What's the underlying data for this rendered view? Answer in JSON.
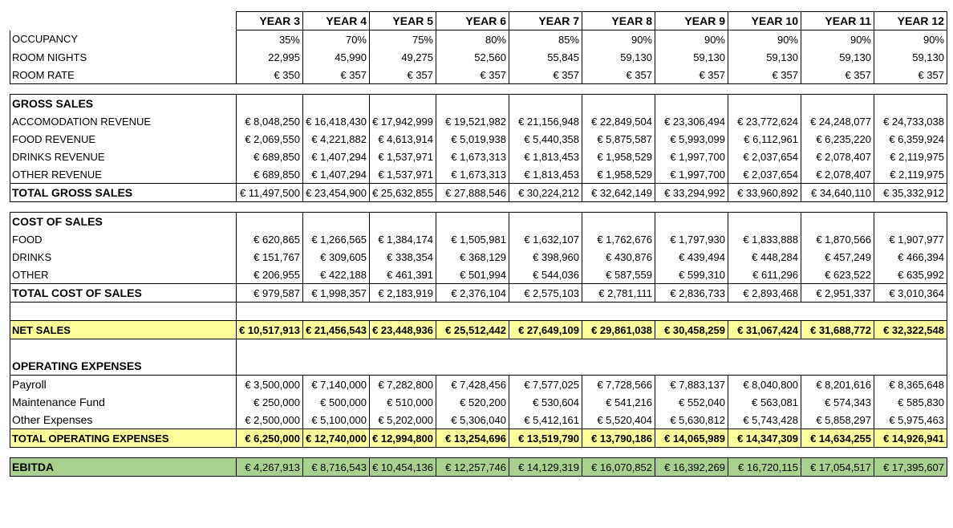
{
  "columns": [
    "YEAR 3",
    "YEAR 4",
    "YEAR 5",
    "YEAR 6",
    "YEAR 7",
    "YEAR 8",
    "YEAR 9",
    "YEAR 10",
    "YEAR 11",
    "YEAR 12"
  ],
  "occupancy": {
    "label": "OCCUPANCY",
    "values": [
      "35%",
      "70%",
      "75%",
      "80%",
      "85%",
      "90%",
      "90%",
      "90%",
      "90%",
      "90%"
    ]
  },
  "room_nights": {
    "label": "ROOM NIGHTS",
    "values": [
      "22,995",
      "45,990",
      "49,275",
      "52,560",
      "55,845",
      "59,130",
      "59,130",
      "59,130",
      "59,130",
      "59,130"
    ]
  },
  "room_rate": {
    "label": "ROOM RATE",
    "values": [
      "€ 350",
      "€ 357",
      "€ 357",
      "€ 357",
      "€ 357",
      "€ 357",
      "€ 357",
      "€ 357",
      "€ 357",
      "€ 357"
    ]
  },
  "gross_sales": {
    "title": "GROSS SALES",
    "rows": [
      {
        "label": "ACCOMODATION  REVENUE",
        "values": [
          "€ 8,048,250",
          "€ 16,418,430",
          "€ 17,942,999",
          "€ 19,521,982",
          "€ 21,156,948",
          "€ 22,849,504",
          "€ 23,306,494",
          "€ 23,772,624",
          "€ 24,248,077",
          "€ 24,733,038"
        ]
      },
      {
        "label": "FOOD REVENUE",
        "values": [
          "€ 2,069,550",
          "€ 4,221,882",
          "€ 4,613,914",
          "€ 5,019,938",
          "€ 5,440,358",
          "€ 5,875,587",
          "€ 5,993,099",
          "€ 6,112,961",
          "€ 6,235,220",
          "€ 6,359,924"
        ]
      },
      {
        "label": "DRINKS REVENUE",
        "values": [
          "€ 689,850",
          "€ 1,407,294",
          "€ 1,537,971",
          "€ 1,673,313",
          "€ 1,813,453",
          "€ 1,958,529",
          "€ 1,997,700",
          "€ 2,037,654",
          "€ 2,078,407",
          "€ 2,119,975"
        ]
      },
      {
        "label": "OTHER REVENUE",
        "values": [
          "€ 689,850",
          "€ 1,407,294",
          "€ 1,537,971",
          "€ 1,673,313",
          "€ 1,813,453",
          "€ 1,958,529",
          "€ 1,997,700",
          "€ 2,037,654",
          "€ 2,078,407",
          "€ 2,119,975"
        ]
      }
    ],
    "total": {
      "label": "TOTAL GROSS SALES",
      "values": [
        "€ 11,497,500",
        "€ 23,454,900",
        "€ 25,632,855",
        "€ 27,888,546",
        "€ 30,224,212",
        "€ 32,642,149",
        "€ 33,294,992",
        "€ 33,960,892",
        "€ 34,640,110",
        "€ 35,332,912"
      ]
    }
  },
  "cost_of_sales": {
    "title": "COST OF SALES",
    "rows": [
      {
        "label": "FOOD",
        "values": [
          "€ 620,865",
          "€ 1,266,565",
          "€ 1,384,174",
          "€ 1,505,981",
          "€ 1,632,107",
          "€ 1,762,676",
          "€ 1,797,930",
          "€ 1,833,888",
          "€ 1,870,566",
          "€ 1,907,977"
        ]
      },
      {
        "label": "DRINKS",
        "values": [
          "€ 151,767",
          "€ 309,605",
          "€ 338,354",
          "€ 368,129",
          "€ 398,960",
          "€ 430,876",
          "€ 439,494",
          "€ 448,284",
          "€ 457,249",
          "€ 466,394"
        ]
      },
      {
        "label": "OTHER",
        "values": [
          "€ 206,955",
          "€ 422,188",
          "€ 461,391",
          "€ 501,994",
          "€ 544,036",
          "€ 587,559",
          "€ 599,310",
          "€ 611,296",
          "€ 623,522",
          "€ 635,992"
        ]
      }
    ],
    "total": {
      "label": "TOTAL COST OF SALES",
      "values": [
        "€ 979,587",
        "€ 1,998,357",
        "€ 2,183,919",
        "€ 2,376,104",
        "€ 2,575,103",
        "€ 2,781,111",
        "€ 2,836,733",
        "€ 2,893,468",
        "€ 2,951,337",
        "€ 3,010,364"
      ]
    }
  },
  "net_sales": {
    "label": "NET SALES",
    "values": [
      "€ 10,517,913",
      "€ 21,456,543",
      "€ 23,448,936",
      "€ 25,512,442",
      "€ 27,649,109",
      "€ 29,861,038",
      "€ 30,458,259",
      "€ 31,067,424",
      "€ 31,688,772",
      "€ 32,322,548"
    ]
  },
  "operating_expenses": {
    "title": "OPERATING EXPENSES",
    "rows": [
      {
        "label": "Payroll",
        "values": [
          "€ 3,500,000",
          "€ 7,140,000",
          "€ 7,282,800",
          "€ 7,428,456",
          "€ 7,577,025",
          "€ 7,728,566",
          "€ 7,883,137",
          "€ 8,040,800",
          "€ 8,201,616",
          "€ 8,365,648"
        ]
      },
      {
        "label": "Maintenance Fund",
        "values": [
          "€ 250,000",
          "€ 500,000",
          "€ 510,000",
          "€ 520,200",
          "€ 530,604",
          "€ 541,216",
          "€ 552,040",
          "€ 563,081",
          "€ 574,343",
          "€ 585,830"
        ]
      },
      {
        "label": "Other Expenses",
        "values": [
          "€ 2,500,000",
          "€ 5,100,000",
          "€ 5,202,000",
          "€ 5,306,040",
          "€ 5,412,161",
          "€ 5,520,404",
          "€ 5,630,812",
          "€ 5,743,428",
          "€ 5,858,297",
          "€ 5,975,463"
        ]
      }
    ],
    "total": {
      "label": "TOTAL OPERATING EXPENSES",
      "values": [
        "€ 6,250,000",
        "€ 12,740,000",
        "€ 12,994,800",
        "€ 13,254,696",
        "€ 13,519,790",
        "€ 13,790,186",
        "€ 14,065,989",
        "€ 14,347,309",
        "€ 14,634,255",
        "€ 14,926,941"
      ]
    }
  },
  "ebitda": {
    "label": "EBITDA",
    "values": [
      "€ 4,267,913",
      "€ 8,716,543",
      "€ 10,454,136",
      "€ 12,257,746",
      "€ 14,129,319",
      "€ 16,070,852",
      "€ 16,392,269",
      "€ 16,720,115",
      "€ 17,054,517",
      "€ 17,395,607"
    ]
  },
  "colors": {
    "highlight_yellow": "#fdfd9c",
    "highlight_green": "#a9d18e"
  }
}
